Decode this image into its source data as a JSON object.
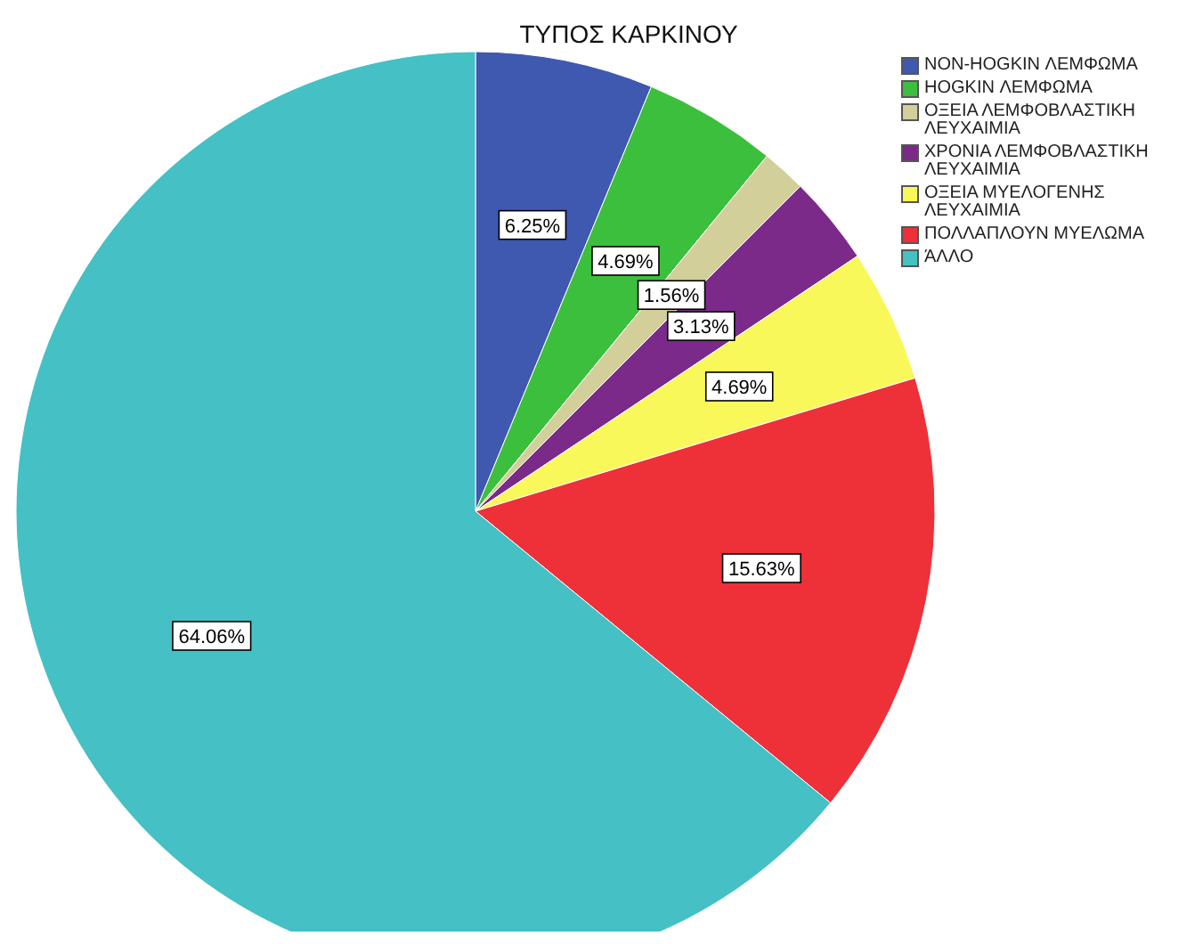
{
  "chart_data": {
    "type": "pie",
    "title": "ΤΥΠΟΣ ΚΑΡΚΙΝΟΥ",
    "categories": [
      "NON-HOGKIN ΛΕΜΦΩΜΑ",
      "HOGKIN ΛΕΜΦΩΜΑ",
      "ΟΞΕΙΑ ΛΕΜΦΟΒΛΑΣΤΙΚΗ ΛΕΥΧΑΙΜΙΑ",
      "ΧΡΟΝΙΑ ΛΕΜΦΟΒΛΑΣΤΙΚΗ ΛΕΥΧΑΙΜΙΑ",
      "ΟΞΕΙΑ ΜΥΕΛΟΓΕΝΗΣ ΛΕΥΧΑΙΜΙΑ",
      "ΠΟΛΛΑΠΛΟΥΝ ΜΥΕΛΩΜΑ",
      "ΆΛΛΟ"
    ],
    "values": [
      6.25,
      4.69,
      1.56,
      3.13,
      4.69,
      15.63,
      64.06
    ],
    "colors": [
      "#3f58b0",
      "#3cbf3c",
      "#d3cf9a",
      "#7b2a8a",
      "#f8f85a",
      "#ee3039",
      "#45c0c4"
    ],
    "value_labels": [
      "6.25%",
      "4.69%",
      "1.56%",
      "3.13%",
      "4.69%",
      "15.63%",
      "64.06%"
    ],
    "legend": "top right"
  }
}
